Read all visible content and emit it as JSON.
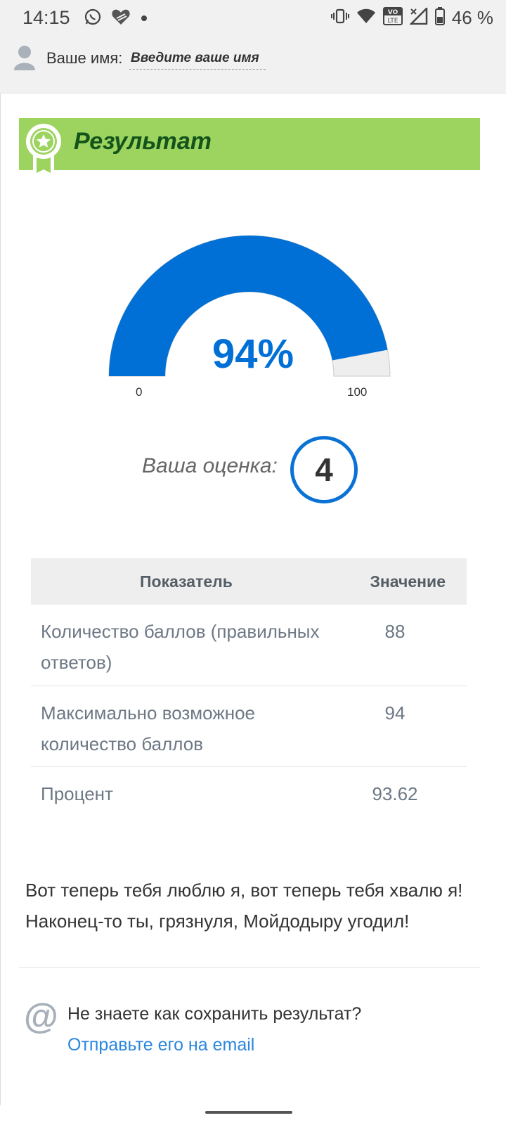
{
  "status_bar": {
    "time": "14:15",
    "battery_percent": "46 %",
    "left_icons": [
      "whatsapp-icon",
      "heart-app-icon",
      "notification-dot-icon"
    ],
    "right_icons": [
      "vibrate-icon",
      "wifi-icon",
      "volte-icon",
      "signal-icon",
      "battery-icon"
    ]
  },
  "name_bar": {
    "label": "Ваше имя:",
    "placeholder": "Введите ваше имя"
  },
  "result": {
    "title": "Результат",
    "gauge": {
      "value_percent": 94,
      "value_text": "94%",
      "min_label": "0",
      "max_label": "100",
      "fill_color": "#0070d6",
      "track_color": "#eeeeee"
    },
    "grade_label": "Ваша оценка:",
    "grade_value": "4"
  },
  "table": {
    "headers": [
      "Показатель",
      "Значение"
    ],
    "rows": [
      {
        "label": "Количество баллов (правильных ответов)",
        "value": "88"
      },
      {
        "label": "Максимально возможное количество баллов",
        "value": "94"
      },
      {
        "label": "Процент",
        "value": "93.62"
      }
    ]
  },
  "message": "Вот теперь тебя люблю я, вот теперь тебя хвалю я! Наконец-то ты, грязнуля, Мойдодыру угодил!",
  "email": {
    "question": "Не знаете как сохранить результат?",
    "link": "Отправьте его на email"
  },
  "colors": {
    "header_green": "#9dd35f",
    "header_title": "#13541b",
    "accent_blue": "#0070d6",
    "link_blue": "#2a86e0"
  }
}
